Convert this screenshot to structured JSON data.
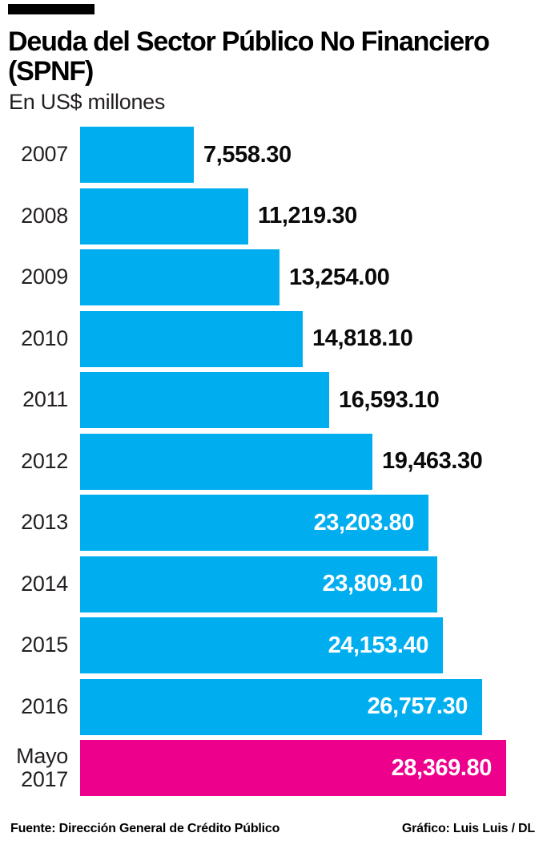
{
  "header": {
    "tag_color": "#000000",
    "title_line1": "Deuda del Sector Público No Financiero",
    "title_line2": "(SPNF)",
    "subtitle": "En US$ millones"
  },
  "chart_data": {
    "type": "bar",
    "orientation": "horizontal",
    "title": "Deuda del Sector Público No Financiero (SPNF)",
    "subtitle": "En US$ millones",
    "categories": [
      "2007",
      "2008",
      "2009",
      "2010",
      "2011",
      "2012",
      "2013",
      "2014",
      "2015",
      "2016",
      "Mayo 2017"
    ],
    "values": [
      7558.3,
      11219.3,
      13254.0,
      14818.1,
      16593.1,
      19463.3,
      23203.8,
      23809.1,
      24153.4,
      26757.3,
      28369.8
    ],
    "value_labels": [
      "7,558.30",
      "11,219.30",
      "13,254.00",
      "14,818.10",
      "16,593.10",
      "19,463.30",
      "23,203.80",
      "23,809.10",
      "24,153.40",
      "26,757.30",
      "28,369.80"
    ],
    "bar_color": "#00AEEF",
    "highlight_color": "#EC008C",
    "highlight_index": 10,
    "xlim": [
      0,
      28369.8
    ],
    "grid": false,
    "legend": false
  },
  "footer": {
    "source": "Fuente: Dirección General de Crédito Público",
    "credit": "Gráfico: Luis Luis / DL"
  }
}
